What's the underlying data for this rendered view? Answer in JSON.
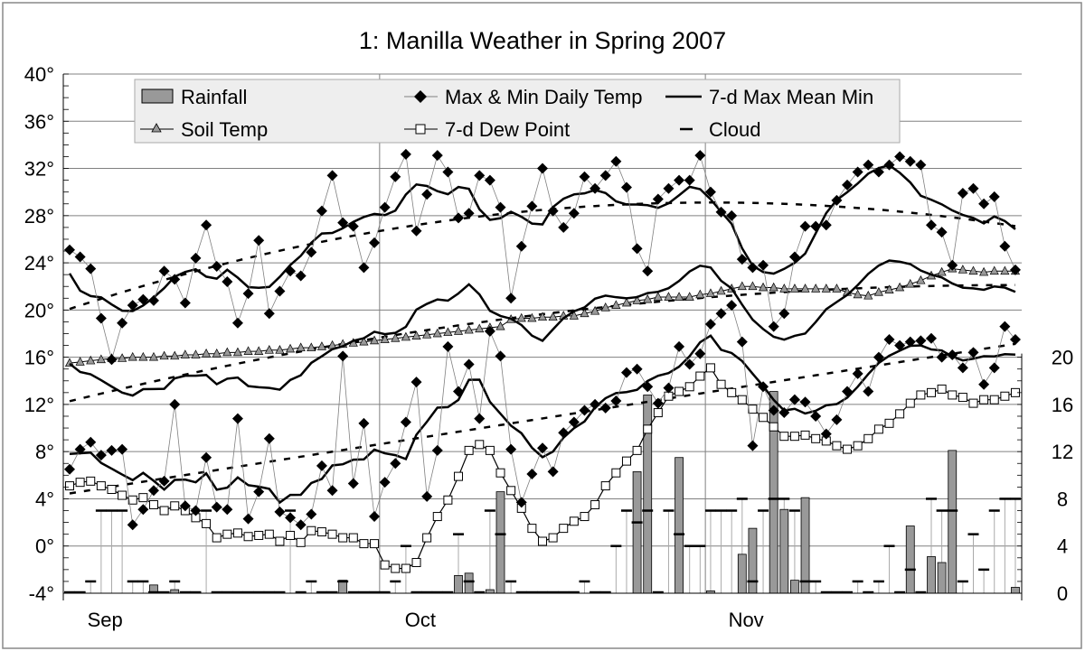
{
  "chart_data": {
    "type": "combo",
    "title": "1: Manilla Weather in Spring 2007",
    "left_axis": {
      "ticks": [
        "40°",
        "36°",
        "32°",
        "28°",
        "24°",
        "20°",
        "16°",
        "12°",
        "8°",
        "4°",
        "0°",
        "-4°"
      ],
      "range": [
        -4,
        40
      ]
    },
    "right_axis": {
      "ticks": [
        "20",
        "16",
        "12",
        "8",
        "4",
        "0"
      ],
      "range": [
        0,
        20
      ]
    },
    "x_axis": {
      "months": [
        "Sep",
        "Oct",
        "Nov"
      ],
      "range": [
        "2007-09-01",
        "2007-11-30"
      ]
    },
    "grid": true,
    "legend_placement": "top",
    "legend": {
      "rainfall": "Rainfall",
      "maxmin": "Max & Min Daily Temp",
      "ma": "7-d  Max Mean Min",
      "soil": "Soil Temp",
      "dew": "7-d Dew Point",
      "cloud": "Cloud"
    },
    "colors": {
      "bar": "#999999",
      "soil_marker": "#999999",
      "daily_line": "#808080",
      "grid": "#808080",
      "legend_bg": "#eeeeee"
    },
    "max_temp": [
      25.1,
      24.5,
      23.5,
      19.3,
      15.8,
      18.9,
      20.4,
      20.9,
      20.8,
      23.3,
      22.6,
      20.6,
      24.4,
      27.2,
      23.7,
      22.4,
      18.9,
      21.4,
      25.9,
      19.7,
      21.6,
      23.3,
      22.9,
      24.9,
      28.4,
      31.4,
      27.4,
      27.1,
      23.6,
      25.7,
      28.7,
      31.3,
      33.2,
      26.7,
      29.8,
      33.1,
      31.7,
      27.8,
      28.2,
      31.4,
      31.0,
      28.7,
      21.0,
      25.4,
      28.8,
      32.0,
      28.4,
      27.0,
      28.2,
      31.3,
      30.3,
      31.4,
      32.6,
      30.4,
      25.2,
      23.3,
      29.4,
      30.3,
      31.0,
      31.0,
      33.1,
      30.0,
      28.3,
      28.0,
      24.3,
      23.6,
      23.8,
      18.6,
      19.7,
      24.5,
      27.1,
      27.1,
      27.2,
      29.3,
      30.6,
      31.7,
      32.3,
      31.7,
      32.3,
      33.0,
      32.6,
      32.3,
      27.2,
      26.6,
      23.8,
      29.9,
      30.3,
      29.0,
      29.6,
      25.4,
      23.4
    ],
    "min_temp": [
      6.5,
      8.2,
      8.8,
      7.7,
      8.1,
      8.2,
      1.8,
      3.1,
      4.7,
      5.5,
      12.0,
      3.4,
      3.0,
      7.5,
      3.3,
      3.1,
      10.8,
      2.3,
      4.6,
      9.1,
      2.9,
      2.4,
      1.8,
      2.7,
      6.8,
      4.7,
      16.1,
      5.3,
      10.4,
      2.5,
      5.4,
      7.0,
      10.5,
      13.9,
      4.2,
      8.1,
      16.9,
      13.1,
      15.4,
      10.8,
      18.2,
      16.1,
      8.2,
      3.7,
      6.1,
      8.3,
      6.3,
      9.6,
      10.5,
      11.5,
      12.0,
      11.7,
      12.3,
      14.7,
      15.0,
      13.5,
      12.1,
      13.4,
      16.9,
      15.4,
      16.3,
      18.8,
      19.7,
      20.4,
      17.3,
      8.5,
      13.5,
      11.5,
      11.3,
      12.4,
      12.2,
      11.0,
      9.5,
      10.7,
      13.1,
      14.6,
      13.1,
      16.0,
      17.5,
      17.0,
      17.3,
      17.4,
      17.6,
      16.0,
      16.2,
      15.1,
      16.4,
      13.7,
      15.1,
      18.6,
      17.5
    ],
    "soil_temp": [
      15.5,
      15.6,
      15.7,
      15.8,
      15.9,
      15.9,
      16.0,
      16.0,
      16.0,
      16.1,
      16.1,
      16.2,
      16.2,
      16.3,
      16.3,
      16.4,
      16.4,
      16.5,
      16.5,
      16.6,
      16.6,
      16.7,
      16.8,
      16.8,
      16.9,
      17.0,
      17.1,
      17.2,
      17.3,
      17.4,
      17.5,
      17.6,
      17.7,
      17.8,
      17.9,
      18.0,
      18.1,
      18.2,
      18.3,
      18.4,
      18.5,
      18.6,
      19.2,
      19.3,
      19.3,
      19.4,
      19.4,
      19.5,
      19.5,
      19.7,
      19.9,
      20.2,
      20.4,
      20.6,
      20.8,
      20.9,
      21.1,
      21.1,
      21.1,
      21.1,
      21.3,
      21.4,
      21.6,
      21.8,
      22.0,
      22.0,
      21.9,
      21.9,
      21.8,
      21.8,
      21.8,
      21.8,
      21.8,
      21.8,
      21.5,
      21.3,
      21.2,
      21.5,
      21.7,
      21.9,
      22.2,
      22.5,
      22.9,
      23.2,
      23.5,
      23.4,
      23.3,
      23.2,
      23.3,
      23.3,
      23.3
    ],
    "dew_point_7d": [
      5.1,
      5.4,
      5.5,
      5.1,
      4.8,
      4.3,
      3.9,
      4.1,
      3.5,
      3.0,
      3.4,
      3.0,
      2.4,
      1.9,
      0.7,
      1.0,
      1.1,
      0.8,
      0.9,
      1.0,
      0.4,
      0.9,
      0.3,
      1.3,
      1.2,
      1.0,
      0.7,
      0.7,
      0.2,
      0.2,
      -1.6,
      -1.9,
      -1.9,
      -1.4,
      0.7,
      2.5,
      3.9,
      5.9,
      8.1,
      8.6,
      8.1,
      6.2,
      4.7,
      3.2,
      1.5,
      0.4,
      0.7,
      1.5,
      2.1,
      2.5,
      3.5,
      5.1,
      6.2,
      7.2,
      8.1,
      9.9,
      11.3,
      12.7,
      13.1,
      13.5,
      14.4,
      15.1,
      13.7,
      13.0,
      12.4,
      11.6,
      10.9,
      10.1,
      9.3,
      9.3,
      9.4,
      9.1,
      8.9,
      8.5,
      8.2,
      8.5,
      9.1,
      9.9,
      10.4,
      11.2,
      12.1,
      12.8,
      13.0,
      13.3,
      12.8,
      12.6,
      12.1,
      12.4,
      12.4,
      12.7,
      13.0
    ],
    "rainfall_mm": [
      0,
      0,
      0,
      0,
      0,
      0,
      0,
      0,
      0.7,
      0,
      0.3,
      0,
      0,
      0,
      0,
      0,
      0,
      0,
      0,
      0,
      0,
      0,
      0,
      0,
      0,
      0,
      1.1,
      0,
      0,
      0,
      0,
      0,
      0,
      0,
      0,
      0,
      0,
      1.5,
      1.7,
      0,
      0.3,
      8.6,
      0,
      0,
      0,
      0,
      0,
      0,
      0,
      0,
      0,
      0,
      0,
      0,
      10.3,
      16.8,
      0,
      0,
      11.5,
      0,
      0,
      0.2,
      0,
      0,
      3.3,
      5.5,
      0,
      17.1,
      7.1,
      1.1,
      8.1,
      0,
      0,
      0,
      0,
      0,
      0,
      0,
      0,
      0,
      5.7,
      0,
      3.1,
      2.6,
      12.1,
      0,
      0,
      0,
      0,
      0,
      0.5
    ],
    "cloud_oktas": [
      0,
      0,
      1,
      7,
      7,
      7,
      1,
      1,
      0,
      0,
      1,
      0,
      0,
      7,
      0,
      0,
      0,
      0,
      0,
      0,
      0,
      7,
      0,
      1,
      0,
      0,
      1,
      0,
      0,
      0,
      0,
      1,
      4,
      0,
      0,
      0,
      0,
      5,
      1,
      0,
      7,
      5,
      1,
      0,
      0,
      0,
      0,
      0,
      0,
      1,
      0,
      0,
      4,
      7,
      6,
      7,
      0,
      7,
      5,
      4,
      4,
      7,
      7,
      7,
      8,
      1,
      7,
      8,
      8,
      7,
      1,
      1,
      0,
      0,
      0,
      1,
      0,
      1,
      4,
      0,
      2,
      0,
      8,
      7,
      7,
      1,
      5,
      2,
      7,
      8,
      8
    ]
  }
}
